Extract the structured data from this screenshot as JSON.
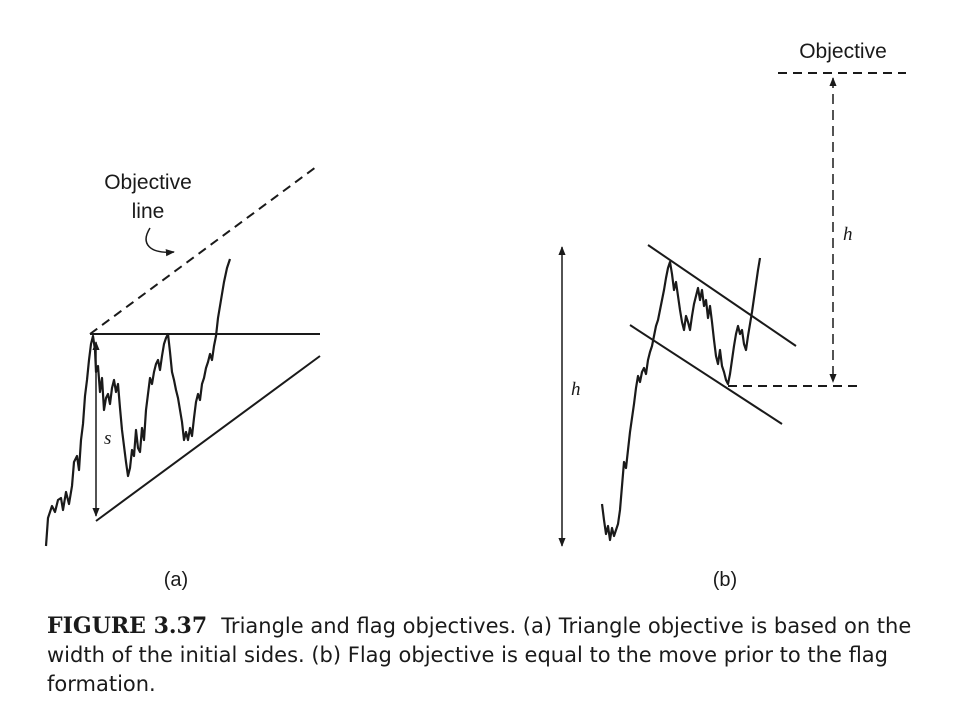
{
  "panel_a": {
    "objective_label_line1": "Objective",
    "objective_label_line2": "line",
    "measure_label": "s",
    "sublabel": "(a)"
  },
  "panel_b": {
    "objective_label": "Objective",
    "move_label": "h",
    "objective_measure_label": "h",
    "sublabel": "(b)"
  },
  "caption": {
    "figure_number": "FIGURE 3.37",
    "text": "Triangle and flag objectives. (a) Triangle objective is based on the width of the initial sides. (b) Flag objective is equal to the move prior to the flag formation."
  },
  "colors": {
    "ink": "#1a1a1a",
    "background": "#ffffff"
  }
}
